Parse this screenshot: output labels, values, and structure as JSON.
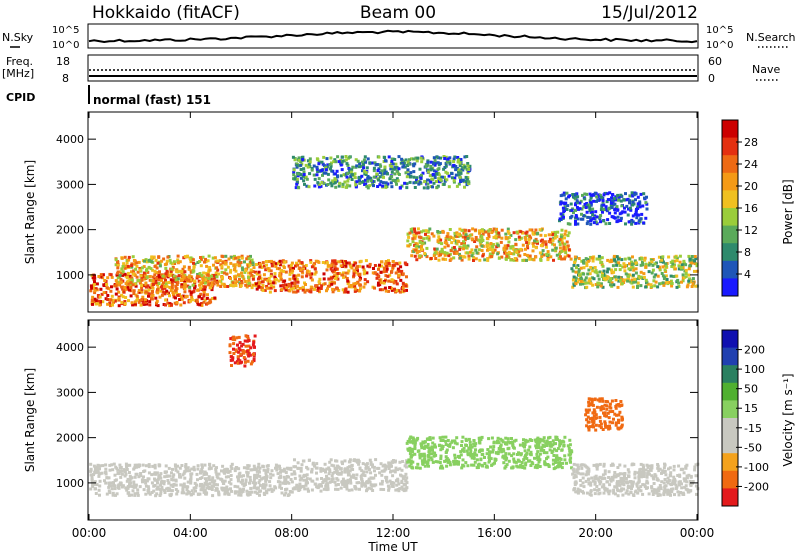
{
  "header": {
    "title": "Hokkaido (fitACF)",
    "beam": "Beam 00",
    "date": "15/Jul/2012"
  },
  "top_panels": {
    "nsky_label": "N.Sky",
    "nsky_ticks": [
      "10^5",
      "10^0"
    ],
    "nsearch_label": "N.Search",
    "nsearch_ticks": [
      "10^5",
      "10^0"
    ],
    "freq_label_1": "Freq.",
    "freq_label_2": "[MHz]",
    "freq_ticks": [
      "18",
      "8"
    ],
    "nave_label": "Nave",
    "nave_ticks": [
      "60",
      "0"
    ],
    "cpid_label": "CPID",
    "cpid_value": "normal (fast) 151"
  },
  "colors": {
    "power": [
      "#1a1aff",
      "#1f56b8",
      "#2e8a6c",
      "#5aaa5a",
      "#9acd3a",
      "#f0c020",
      "#f59a16",
      "#ee6a14",
      "#e43010",
      "#cc0000"
    ],
    "velocity": [
      "#e41a1c",
      "#f06a12",
      "#f4a21c",
      "#c8c8c0",
      "#c8c8c0",
      "#88d060",
      "#50b030",
      "#2a8060",
      "#2040b0",
      "#1010b0"
    ]
  },
  "chart_data": [
    {
      "type": "heatmap",
      "title": "Power",
      "xlabel": "",
      "ylabel": "Slant Range [km]",
      "colorbar_label": "Power [dB]",
      "colorbar_ticks": [
        "4",
        "8",
        "12",
        "16",
        "20",
        "24",
        "28"
      ],
      "x_range": [
        "00:00",
        "24:00"
      ],
      "ylim": [
        180,
        4600
      ],
      "yticks": [
        "1000",
        "2000",
        "3000",
        "4000"
      ],
      "scatter_bands": [
        {
          "start_h": 0,
          "end_h": 5,
          "range_km": 700,
          "power_db": 25
        },
        {
          "start_h": 1,
          "end_h": 6.5,
          "range_km": 1100,
          "power_db": 20
        },
        {
          "start_h": 6.5,
          "end_h": 12.5,
          "range_km": 1000,
          "power_db": 24
        },
        {
          "start_h": 12.5,
          "end_h": 19,
          "range_km": 1700,
          "power_db": 20
        },
        {
          "start_h": 19,
          "end_h": 24,
          "range_km": 1100,
          "power_db": 16
        },
        {
          "start_h": 8,
          "end_h": 15,
          "range_km": 3300,
          "power_db": 10
        },
        {
          "start_h": 18.5,
          "end_h": 22,
          "range_km": 2500,
          "power_db": 6
        }
      ]
    },
    {
      "type": "heatmap",
      "title": "Velocity",
      "xlabel": "Time UT",
      "ylabel": "Slant Range [km]",
      "colorbar_label": "Velocity [m s⁻¹]",
      "colorbar_ticks": [
        "200",
        "100",
        "50",
        "15",
        "-15",
        "-50",
        "-100",
        "-200"
      ],
      "x_ticks": [
        "00:00",
        "04:00",
        "08:00",
        "12:00",
        "16:00",
        "20:00",
        "00:00"
      ],
      "ylim": [
        180,
        4600
      ],
      "yticks": [
        "1000",
        "2000",
        "3000",
        "4000"
      ],
      "scatter_bands": [
        {
          "start_h": 0,
          "end_h": 8,
          "range_km": 1100,
          "velocity": 0
        },
        {
          "start_h": 8,
          "end_h": 12.5,
          "range_km": 1200,
          "velocity": -40
        },
        {
          "start_h": 12.5,
          "end_h": 19,
          "range_km": 1700,
          "velocity": 40
        },
        {
          "start_h": 19,
          "end_h": 24,
          "range_km": 1100,
          "velocity": 0
        },
        {
          "start_h": 5.5,
          "end_h": 6.5,
          "range_km": 3950,
          "velocity": -200
        },
        {
          "start_h": 19.5,
          "end_h": 21,
          "range_km": 2550,
          "velocity": -150
        }
      ]
    }
  ]
}
